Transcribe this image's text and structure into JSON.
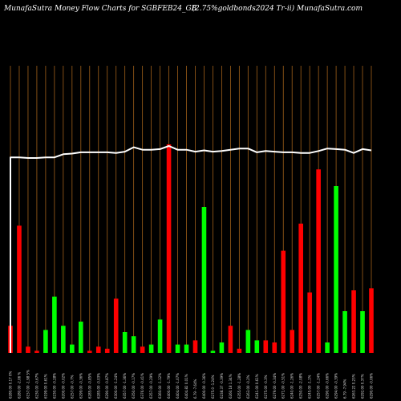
{
  "header": {
    "title_left": "MunafaSutra  Money Flow  Charts for SGBFEB24_GB",
    "title_right": "(2.75%goldbonds2024  Tr-ii) MunafaSutra.com"
  },
  "colors": {
    "background": "#000000",
    "up": "#00ff00",
    "down": "#ff0000",
    "grid": "#a0601a",
    "price_line": "#ffffff"
  },
  "chart_data": {
    "type": "bar",
    "title": "MunafaSutra  Money Flow  Charts for SGBFEB24_GB",
    "categories": [
      "6280.00 0.17 0%",
      "6280.00 -2.06 %",
      "6157.00 -1.98 5%",
      "6230.00 -0.67%",
      "6199.00 0.61%",
      "6230.00 -0.28%",
      "6200.00 -0.02%",
      "6257.00 -0.7%",
      "6299.00 -0.36%",
      "6285.00 -0.85%",
      "6285.00 -0.03%",
      "6290.00 -0.87%",
      "6300.00 -1.24%",
      "6357.00 -1.36%",
      "6350.00 -0.17%",
      "6376.00 -0.41%",
      "6357.00 -0.29%",
      "6360.00 -1.12%",
      "6400.00 -1.79%",
      "6404.00 -1.07%",
      "6404.82 0.01%",
      "6.79 -7.64%",
      "6400.00 -0.36%",
      "6275.0 -1.24%",
      "6238.37 -0.39%",
      "6260.18 1.34%",
      "6355.00 -1.28%",
      "6263.00 -0.2%",
      "6241.00 0.61%",
      "6275.00 -0.3%",
      "6279.00 -0.34%",
      "6271.00 -0.51%",
      "6240.00 -1.26%",
      "6250.00 -2.08%",
      "6245.00 -1.1%",
      "6257.00 -1.24%",
      "6290.00 -0.66%",
      "6294.00 -0.39%",
      "6.79 -7.94%",
      "6263.22 0.23%",
      "6292.00 0.37%",
      "6290.00 -0.06%"
    ],
    "bar_colors": [
      "red",
      "red",
      "red",
      "red",
      "green",
      "green",
      "green",
      "green",
      "green",
      "red",
      "red",
      "red",
      "red",
      "green",
      "green",
      "red",
      "green",
      "green",
      "red",
      "green",
      "green",
      "red",
      "green",
      "green",
      "green",
      "red",
      "red",
      "green",
      "green",
      "red",
      "red",
      "red",
      "red",
      "red",
      "red",
      "red",
      "green",
      "green",
      "green",
      "red",
      "green",
      "red"
    ],
    "money_flow_values": [
      13,
      61,
      3,
      1,
      11,
      27,
      13,
      4,
      15,
      1,
      3,
      2,
      26,
      10,
      8,
      3,
      4,
      16,
      100,
      4,
      4,
      6,
      70,
      1,
      5,
      13,
      2,
      11,
      6,
      6,
      5,
      49,
      11,
      62,
      29,
      88,
      5,
      80,
      20,
      30,
      20,
      31
    ],
    "price_line": [
      6180,
      6180,
      6179,
      6179,
      6180,
      6180,
      6185,
      6186,
      6188,
      6188,
      6188,
      6188,
      6187,
      6189,
      6196,
      6192,
      6192,
      6193,
      6198,
      6192,
      6192,
      6189,
      6191,
      6189,
      6190,
      6192,
      6194,
      6194,
      6188,
      6190,
      6189,
      6188,
      6188,
      6187,
      6187,
      6190,
      6194,
      6193,
      6192,
      6187,
      6193,
      6191
    ]
  }
}
